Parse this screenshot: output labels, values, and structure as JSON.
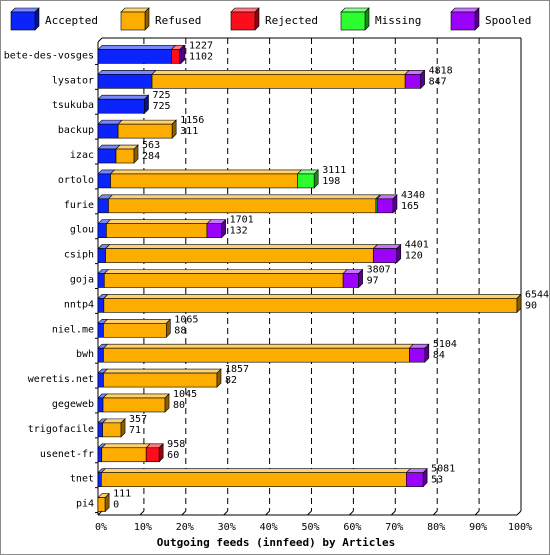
{
  "chart_data": {
    "type": "bar",
    "orientation": "horizontal",
    "stacked": true,
    "xlabel": "Outgoing feeds (innfeed) by Articles",
    "xlim": [
      0,
      100
    ],
    "x_ticks": [
      "0%",
      "10%",
      "20%",
      "30%",
      "40%",
      "50%",
      "60%",
      "70%",
      "80%",
      "90%",
      "100%"
    ],
    "grid": "vertical-dashed",
    "legend_position": "top",
    "legend": [
      {
        "name": "Accepted",
        "color": "#0b24fb"
      },
      {
        "name": "Refused",
        "color": "#fdad00"
      },
      {
        "name": "Rejected",
        "color": "#fc0d1b"
      },
      {
        "name": "Missing",
        "color": "#2bfd2f"
      },
      {
        "name": "Spooled",
        "color": "#9b02fc"
      }
    ],
    "categories": [
      {
        "name": "bete-des-vosges",
        "total": "1227",
        "accepted_label": "1102",
        "values": [
          17.5,
          0,
          2.0,
          0,
          0.3
        ]
      },
      {
        "name": "lysator",
        "total": "4818",
        "accepted_label": "847",
        "values": [
          12.9,
          60.4,
          0,
          0,
          3.7
        ]
      },
      {
        "name": "tsukuba",
        "total": "725",
        "accepted_label": "725",
        "values": [
          11.1,
          0,
          0,
          0,
          0
        ]
      },
      {
        "name": "backup",
        "total": "1156",
        "accepted_label": "311",
        "values": [
          4.8,
          12.9,
          0,
          0,
          0
        ]
      },
      {
        "name": "izac",
        "total": "563",
        "accepted_label": "284",
        "values": [
          4.3,
          4.3,
          0,
          0,
          0
        ]
      },
      {
        "name": "ortolo",
        "total": "3111",
        "accepted_label": "198",
        "values": [
          3.0,
          44.6,
          0,
          4.0,
          0
        ]
      },
      {
        "name": "furie",
        "total": "4340",
        "accepted_label": "165",
        "values": [
          2.5,
          63.8,
          0,
          0.3,
          3.8
        ]
      },
      {
        "name": "glou",
        "total": "1701",
        "accepted_label": "132",
        "values": [
          2.0,
          24.0,
          0,
          0,
          3.5
        ]
      },
      {
        "name": "csiph",
        "total": "4401",
        "accepted_label": "120",
        "values": [
          1.8,
          63.9,
          0,
          0,
          5.6
        ]
      },
      {
        "name": "goja",
        "total": "3807",
        "accepted_label": "97",
        "values": [
          1.5,
          57.0,
          0,
          0,
          3.7
        ]
      },
      {
        "name": "nntp4",
        "total": "6544",
        "accepted_label": "90",
        "values": [
          1.4,
          98.6,
          0,
          0,
          0
        ]
      },
      {
        "name": "niel.me",
        "total": "1065",
        "accepted_label": "88",
        "values": [
          1.3,
          15.0,
          0,
          0,
          0
        ]
      },
      {
        "name": "bwh",
        "total": "5104",
        "accepted_label": "84",
        "values": [
          1.3,
          73.0,
          0,
          0,
          3.7
        ]
      },
      {
        "name": "weretis.net",
        "total": "1857",
        "accepted_label": "82",
        "values": [
          1.3,
          27.1,
          0,
          0,
          0
        ]
      },
      {
        "name": "gegeweb",
        "total": "1045",
        "accepted_label": "80",
        "values": [
          1.2,
          14.8,
          0,
          0,
          0
        ]
      },
      {
        "name": "trigofacile",
        "total": "357",
        "accepted_label": "71",
        "values": [
          1.1,
          4.4,
          0,
          0,
          0
        ]
      },
      {
        "name": "usenet-fr",
        "total": "958",
        "accepted_label": "60",
        "values": [
          0.9,
          10.6,
          3.1,
          0,
          0
        ]
      },
      {
        "name": "tnet",
        "total": "5081",
        "accepted_label": "53",
        "values": [
          0.8,
          72.8,
          0,
          0,
          4.0
        ]
      },
      {
        "name": "pi4",
        "total": "111",
        "accepted_label": "0",
        "values": [
          0,
          1.7,
          0,
          0,
          0
        ]
      }
    ]
  }
}
